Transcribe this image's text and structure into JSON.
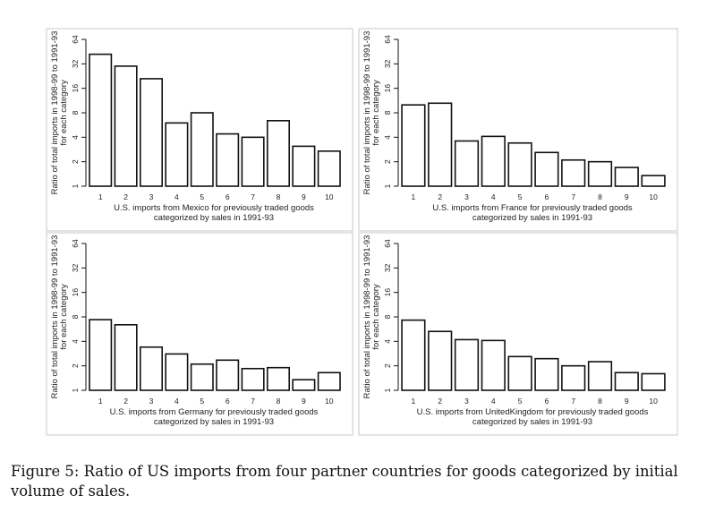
{
  "chart_data": [
    {
      "type": "bar",
      "categories": [
        "1",
        "2",
        "3",
        "4",
        "5",
        "6",
        "7",
        "8",
        "9",
        "10"
      ],
      "values": [
        42,
        30,
        21,
        6,
        8,
        4.4,
        4.0,
        6.4,
        3.1,
        2.7
      ],
      "xlabel_line1": "U.S. imports from Mexico for previously traded goods",
      "xlabel_line2": "categorized by sales in 1991-93",
      "ylabel_line1": "Ratio of total imports in 1998-99 to 1991-93",
      "ylabel_line2": "for each category",
      "yscale": "log2",
      "yticks": [
        "1",
        "2",
        "4",
        "8",
        "16",
        "32",
        "64"
      ],
      "ylim": [
        1,
        64
      ]
    },
    {
      "type": "bar",
      "categories": [
        "1",
        "2",
        "3",
        "4",
        "5",
        "6",
        "7",
        "8",
        "9",
        "10"
      ],
      "values": [
        10,
        10.5,
        3.6,
        4.1,
        3.4,
        2.6,
        2.1,
        2.0,
        1.7,
        1.35
      ],
      "xlabel_line1": "U.S. imports from France for previously traded goods",
      "xlabel_line2": "categorized by sales in 1991-93",
      "ylabel_line1": "Ratio of total imports in 1998-99 to 1991-93",
      "ylabel_line2": "for each category",
      "yscale": "log2",
      "yticks": [
        "1",
        "2",
        "4",
        "8",
        "16",
        "32",
        "64"
      ],
      "ylim": [
        1,
        64
      ]
    },
    {
      "type": "bar",
      "categories": [
        "1",
        "2",
        "3",
        "4",
        "5",
        "6",
        "7",
        "8",
        "9",
        "10"
      ],
      "values": [
        7.4,
        6.4,
        3.4,
        2.8,
        2.1,
        2.35,
        1.85,
        1.9,
        1.35,
        1.65
      ],
      "xlabel_line1": "U.S. imports from Germany for previously traded goods",
      "xlabel_line2": "categorized by sales in 1991-93",
      "ylabel_line1": "Ratio of total imports in 1998-99 to 1991-93",
      "ylabel_line2": "for each category",
      "yscale": "log2",
      "yticks": [
        "1",
        "2",
        "4",
        "8",
        "16",
        "32",
        "64"
      ],
      "ylim": [
        1,
        64
      ]
    },
    {
      "type": "bar",
      "categories": [
        "1",
        "2",
        "3",
        "4",
        "5",
        "6",
        "7",
        "8",
        "9",
        "10"
      ],
      "values": [
        7.3,
        5.3,
        4.2,
        4.1,
        2.6,
        2.45,
        2.0,
        2.25,
        1.65,
        1.6
      ],
      "xlabel_line1": "U.S. imports from UnitedKingdom for previously traded goods",
      "xlabel_line2": "categorized by sales in 1991-93",
      "ylabel_line1": "Ratio of total imports in 1998-99 to 1991-93",
      "ylabel_line2": "for each category",
      "yscale": "log2",
      "yticks": [
        "1",
        "2",
        "4",
        "8",
        "16",
        "32",
        "64"
      ],
      "ylim": [
        1,
        64
      ]
    }
  ],
  "caption": {
    "text": "Figure 5: Ratio of US imports from four partner countries for goods categorized by initial volume of sales."
  },
  "colors": {
    "bar_fill": "#ffffff",
    "bar_stroke": "#111111",
    "panel_border": "#c8c8c8"
  }
}
